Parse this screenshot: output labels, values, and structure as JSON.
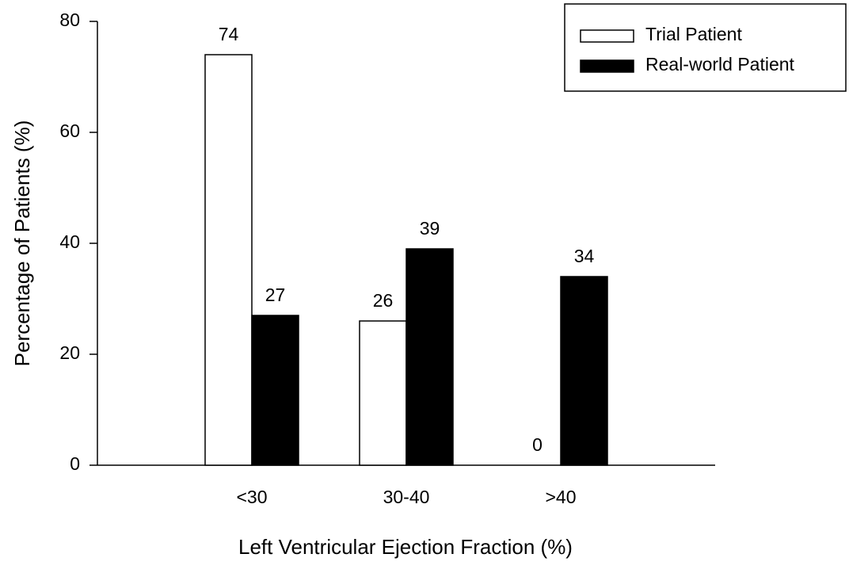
{
  "chart_data": {
    "type": "bar",
    "xlabel": "Left Ventricular Ejection Fraction (%)",
    "ylabel": "Percentage of Patients (%)",
    "categories": [
      "<30",
      "30-40",
      ">40"
    ],
    "series": [
      {
        "name": "Trial Patient",
        "color": "#ffffff",
        "values": [
          74,
          26,
          0
        ]
      },
      {
        "name": "Real-world Patient",
        "color": "#000000",
        "values": [
          27,
          39,
          34
        ]
      }
    ],
    "ylim": [
      0,
      80
    ],
    "yticks": [
      0,
      20,
      40,
      60,
      80
    ],
    "legend": "upper right",
    "data_labels": true
  }
}
